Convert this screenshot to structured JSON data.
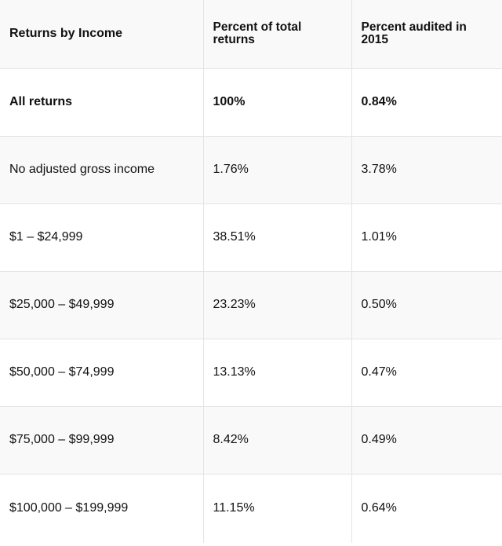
{
  "table": {
    "headers": [
      "Returns by Income",
      "Percent of total returns",
      "Percent audited in 2015"
    ],
    "rows": [
      [
        "All returns",
        "100%",
        "0.84%"
      ],
      [
        "No adjusted gross income",
        "1.76%",
        "3.78%"
      ],
      [
        "$1 – $24,999",
        "38.51%",
        "1.01%"
      ],
      [
        "$25,000 – $49,999",
        "23.23%",
        "0.50%"
      ],
      [
        "$50,000 – $74,999",
        "13.13%",
        "0.47%"
      ],
      [
        "$75,000 – $99,999",
        "8.42%",
        "0.49%"
      ],
      [
        "$100,000 – $199,999",
        "11.15%",
        "0.64%"
      ]
    ]
  }
}
